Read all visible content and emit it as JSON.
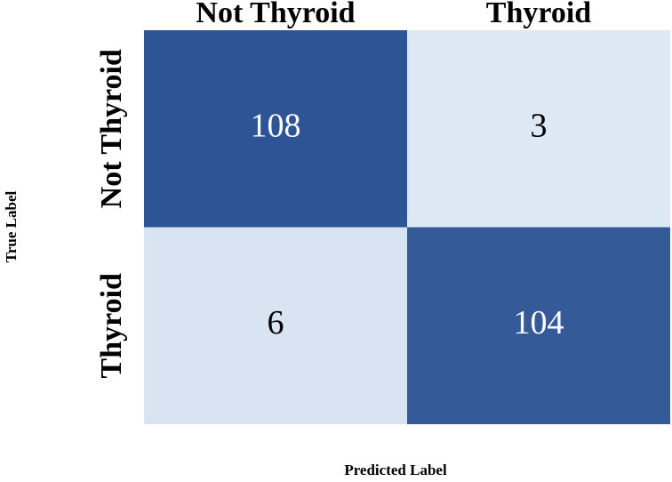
{
  "chart_data": {
    "type": "heatmap",
    "x_label": "Predicted Label",
    "y_label": "True Label",
    "x_categories": [
      "Not Thyroid",
      "Thyroid"
    ],
    "y_categories": [
      "Not Thyroid",
      "Thyroid"
    ],
    "values": [
      [
        108,
        3
      ],
      [
        6,
        104
      ]
    ],
    "colormap": [
      "#dde8f5",
      "#2d5494"
    ]
  }
}
